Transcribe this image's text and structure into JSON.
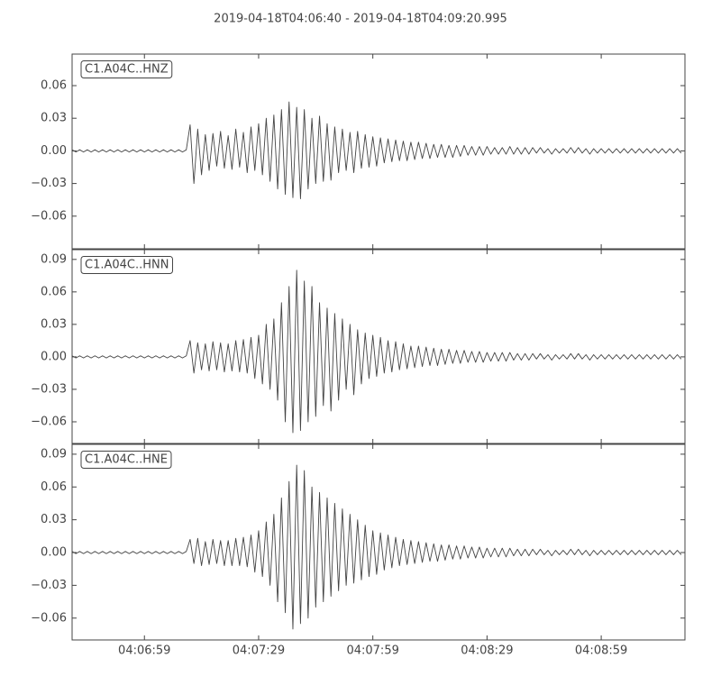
{
  "title": "2019-04-18T04:06:40  -  2019-04-18T04:09:20.995",
  "chart_data": [
    {
      "type": "line",
      "x": [
        0,
        1,
        2,
        3,
        4,
        5,
        6,
        7,
        8,
        9,
        10,
        11,
        12,
        13,
        14,
        15,
        16,
        17,
        18,
        19,
        20,
        21,
        22,
        23,
        24,
        25,
        26,
        27,
        28,
        29,
        30,
        31,
        32,
        33,
        34,
        35,
        36,
        37,
        38,
        39,
        40,
        41,
        42,
        43,
        44,
        45,
        46,
        47,
        48,
        49,
        50,
        51,
        52,
        53,
        54,
        55,
        56,
        57,
        58,
        59,
        60,
        61,
        62,
        63,
        64,
        65,
        66,
        67,
        68,
        69,
        70,
        71,
        72,
        73,
        74,
        75,
        76,
        77,
        78,
        79,
        80,
        81,
        82,
        83,
        84,
        85,
        86,
        87,
        88,
        89,
        90,
        91,
        92,
        93,
        94,
        95,
        96,
        97,
        98,
        99,
        100,
        101,
        102,
        103,
        104,
        105,
        106,
        107,
        108,
        109,
        110,
        111,
        112,
        113,
        114,
        115,
        116,
        117,
        118,
        119,
        120,
        121,
        122,
        123,
        124,
        125,
        126,
        127,
        128,
        129,
        130,
        131,
        132,
        133,
        134,
        135,
        136,
        137,
        138,
        139,
        140,
        141,
        142,
        143,
        144,
        145,
        146,
        147,
        148,
        149,
        150,
        151,
        152,
        153,
        154,
        155,
        156,
        157,
        158,
        159,
        160
      ],
      "series": [
        {
          "name": "C1.A04C..HNZ",
          "color": "#444444",
          "values": [
            0.001,
            -0.001,
            0.001,
            -0.001,
            0.001,
            -0.001,
            0.001,
            -0.001,
            0.001,
            -0.001,
            0.001,
            -0.001,
            0.001,
            -0.001,
            0.001,
            -0.001,
            0.001,
            -0.001,
            0.001,
            -0.001,
            0.001,
            -0.001,
            0.001,
            -0.001,
            0.001,
            -0.001,
            0.001,
            -0.001,
            0.001,
            -0.001,
            0.001,
            0.024,
            -0.03,
            0.02,
            -0.022,
            0.015,
            -0.018,
            0.016,
            -0.014,
            0.018,
            -0.016,
            0.014,
            -0.017,
            0.02,
            -0.015,
            0.017,
            -0.02,
            0.022,
            -0.018,
            0.025,
            -0.022,
            0.03,
            -0.028,
            0.033,
            -0.035,
            0.038,
            -0.04,
            0.045,
            -0.043,
            0.04,
            -0.044,
            0.038,
            -0.035,
            0.03,
            -0.03,
            0.032,
            -0.028,
            0.025,
            -0.027,
            0.022,
            -0.02,
            0.02,
            -0.018,
            0.017,
            -0.02,
            0.018,
            -0.016,
            0.015,
            -0.015,
            0.013,
            -0.014,
            0.012,
            -0.011,
            0.011,
            -0.01,
            0.01,
            -0.009,
            0.009,
            -0.009,
            0.008,
            -0.008,
            0.008,
            -0.007,
            0.007,
            -0.007,
            0.006,
            -0.006,
            0.006,
            -0.006,
            0.005,
            -0.006,
            0.005,
            -0.005,
            0.005,
            -0.004,
            0.004,
            -0.004,
            0.004,
            -0.004,
            0.004,
            -0.003,
            0.003,
            -0.003,
            0.003,
            -0.003,
            0.004,
            -0.003,
            0.003,
            -0.003,
            0.003,
            -0.003,
            0.003,
            -0.002,
            0.003,
            -0.002,
            0.002,
            -0.003,
            0.002,
            -0.002,
            0.002,
            -0.002,
            0.003,
            -0.002,
            0.003,
            -0.002,
            0.002,
            -0.003,
            0.002,
            -0.002,
            0.002,
            -0.002,
            0.002,
            -0.002,
            0.002,
            -0.002,
            0.002,
            -0.002,
            0.002,
            -0.002,
            0.002,
            -0.002,
            0.002,
            -0.002,
            0.002,
            -0.002,
            0.002,
            -0.002,
            0.002,
            -0.002,
            0.002,
            -0.002
          ]
        }
      ],
      "ylim": [
        -0.09,
        0.089
      ],
      "yticks": [
        {
          "value": -0.06,
          "label": "−0.06"
        },
        {
          "value": -0.03,
          "label": "−0.03"
        },
        {
          "value": 0,
          "label": "0.00"
        },
        0.03,
        0.06
      ]
    },
    {
      "type": "line",
      "x": [
        0,
        1,
        2,
        3,
        4,
        5,
        6,
        7,
        8,
        9,
        10,
        11,
        12,
        13,
        14,
        15,
        16,
        17,
        18,
        19,
        20,
        21,
        22,
        23,
        24,
        25,
        26,
        27,
        28,
        29,
        30,
        31,
        32,
        33,
        34,
        35,
        36,
        37,
        38,
        39,
        40,
        41,
        42,
        43,
        44,
        45,
        46,
        47,
        48,
        49,
        50,
        51,
        52,
        53,
        54,
        55,
        56,
        57,
        58,
        59,
        60,
        61,
        62,
        63,
        64,
        65,
        66,
        67,
        68,
        69,
        70,
        71,
        72,
        73,
        74,
        75,
        76,
        77,
        78,
        79,
        80,
        81,
        82,
        83,
        84,
        85,
        86,
        87,
        88,
        89,
        90,
        91,
        92,
        93,
        94,
        95,
        96,
        97,
        98,
        99,
        100,
        101,
        102,
        103,
        104,
        105,
        106,
        107,
        108,
        109,
        110,
        111,
        112,
        113,
        114,
        115,
        116,
        117,
        118,
        119,
        120,
        121,
        122,
        123,
        124,
        125,
        126,
        127,
        128,
        129,
        130,
        131,
        132,
        133,
        134,
        135,
        136,
        137,
        138,
        139,
        140,
        141,
        142,
        143,
        144,
        145,
        146,
        147,
        148,
        149,
        150,
        151,
        152,
        153,
        154,
        155,
        156,
        157,
        158,
        159,
        160
      ],
      "series": [
        {
          "name": "C1.A04C..HNN",
          "color": "#444444",
          "values": [
            0.001,
            -0.001,
            0.001,
            -0.001,
            0.001,
            -0.001,
            0.001,
            -0.001,
            0.001,
            -0.001,
            0.001,
            -0.001,
            0.001,
            -0.001,
            0.001,
            -0.001,
            0.001,
            -0.001,
            0.001,
            -0.001,
            0.001,
            -0.001,
            0.001,
            -0.001,
            0.001,
            -0.001,
            0.001,
            -0.001,
            0.001,
            -0.001,
            0.001,
            0.015,
            -0.015,
            0.013,
            -0.012,
            0.012,
            -0.013,
            0.014,
            -0.012,
            0.013,
            -0.014,
            0.012,
            -0.013,
            0.015,
            -0.014,
            0.016,
            -0.015,
            0.018,
            -0.02,
            0.02,
            -0.025,
            0.03,
            -0.03,
            0.035,
            -0.04,
            0.05,
            -0.06,
            0.065,
            -0.07,
            0.08,
            -0.068,
            0.07,
            -0.06,
            0.065,
            -0.055,
            0.05,
            -0.045,
            0.045,
            -0.05,
            0.04,
            -0.04,
            0.035,
            -0.03,
            0.03,
            -0.035,
            0.025,
            -0.025,
            0.022,
            -0.02,
            0.02,
            -0.018,
            0.018,
            -0.015,
            0.015,
            -0.014,
            0.014,
            -0.012,
            0.012,
            -0.011,
            0.01,
            -0.01,
            0.01,
            -0.009,
            0.009,
            -0.008,
            0.008,
            -0.008,
            0.007,
            -0.007,
            0.007,
            -0.006,
            0.006,
            -0.006,
            0.006,
            -0.005,
            0.005,
            -0.005,
            0.005,
            -0.005,
            0.004,
            -0.004,
            0.004,
            -0.004,
            0.004,
            -0.004,
            0.004,
            -0.003,
            0.003,
            -0.003,
            0.003,
            -0.003,
            0.003,
            -0.002,
            0.003,
            -0.002,
            0.002,
            -0.003,
            0.002,
            -0.002,
            0.002,
            -0.002,
            0.003,
            -0.002,
            0.003,
            -0.002,
            0.002,
            -0.003,
            0.002,
            -0.002,
            0.002,
            -0.002,
            0.002,
            -0.002,
            0.002,
            -0.002,
            0.002,
            -0.002,
            0.002,
            -0.002,
            0.002,
            -0.002,
            0.002,
            -0.002,
            0.002,
            -0.002,
            0.002,
            -0.002,
            0.002,
            -0.002,
            0.002,
            -0.002
          ]
        }
      ],
      "ylim": [
        -0.08,
        0.099
      ],
      "yticks": [
        {
          "value": -0.06,
          "label": "−0.06"
        },
        {
          "value": -0.03,
          "label": "−0.03"
        },
        {
          "value": 0,
          "label": "0.00"
        },
        0.03,
        0.06,
        0.09
      ]
    },
    {
      "type": "line",
      "x": [
        0,
        1,
        2,
        3,
        4,
        5,
        6,
        7,
        8,
        9,
        10,
        11,
        12,
        13,
        14,
        15,
        16,
        17,
        18,
        19,
        20,
        21,
        22,
        23,
        24,
        25,
        26,
        27,
        28,
        29,
        30,
        31,
        32,
        33,
        34,
        35,
        36,
        37,
        38,
        39,
        40,
        41,
        42,
        43,
        44,
        45,
        46,
        47,
        48,
        49,
        50,
        51,
        52,
        53,
        54,
        55,
        56,
        57,
        58,
        59,
        60,
        61,
        62,
        63,
        64,
        65,
        66,
        67,
        68,
        69,
        70,
        71,
        72,
        73,
        74,
        75,
        76,
        77,
        78,
        79,
        80,
        81,
        82,
        83,
        84,
        85,
        86,
        87,
        88,
        89,
        90,
        91,
        92,
        93,
        94,
        95,
        96,
        97,
        98,
        99,
        100,
        101,
        102,
        103,
        104,
        105,
        106,
        107,
        108,
        109,
        110,
        111,
        112,
        113,
        114,
        115,
        116,
        117,
        118,
        119,
        120,
        121,
        122,
        123,
        124,
        125,
        126,
        127,
        128,
        129,
        130,
        131,
        132,
        133,
        134,
        135,
        136,
        137,
        138,
        139,
        140,
        141,
        142,
        143,
        144,
        145,
        146,
        147,
        148,
        149,
        150,
        151,
        152,
        153,
        154,
        155,
        156,
        157,
        158,
        159,
        160
      ],
      "series": [
        {
          "name": "C1.A04C..HNE",
          "color": "#444444",
          "values": [
            0.001,
            -0.001,
            0.001,
            -0.001,
            0.001,
            -0.001,
            0.001,
            -0.001,
            0.001,
            -0.001,
            0.001,
            -0.001,
            0.001,
            -0.001,
            0.001,
            -0.001,
            0.001,
            -0.001,
            0.001,
            -0.001,
            0.001,
            -0.001,
            0.001,
            -0.001,
            0.001,
            -0.001,
            0.001,
            -0.001,
            0.001,
            -0.001,
            0.001,
            0.012,
            -0.01,
            0.013,
            -0.012,
            0.01,
            -0.011,
            0.012,
            -0.01,
            0.011,
            -0.012,
            0.011,
            -0.012,
            0.013,
            -0.012,
            0.014,
            -0.013,
            0.016,
            -0.018,
            0.02,
            -0.022,
            0.028,
            -0.03,
            0.035,
            -0.045,
            0.05,
            -0.055,
            0.065,
            -0.07,
            0.08,
            -0.065,
            0.075,
            -0.06,
            0.06,
            -0.05,
            0.055,
            -0.045,
            0.05,
            -0.04,
            0.045,
            -0.035,
            0.04,
            -0.03,
            0.035,
            -0.028,
            0.03,
            -0.025,
            0.025,
            -0.022,
            0.02,
            -0.02,
            0.018,
            -0.016,
            0.016,
            -0.014,
            0.014,
            -0.012,
            0.012,
            -0.011,
            0.011,
            -0.01,
            0.01,
            -0.009,
            0.009,
            -0.008,
            0.008,
            -0.008,
            0.007,
            -0.007,
            0.007,
            -0.006,
            0.006,
            -0.006,
            0.006,
            -0.005,
            0.005,
            -0.005,
            0.005,
            -0.005,
            0.004,
            -0.004,
            0.004,
            -0.004,
            0.004,
            -0.004,
            0.004,
            -0.003,
            0.003,
            -0.003,
            0.003,
            -0.003,
            0.003,
            -0.002,
            0.003,
            -0.002,
            0.002,
            -0.003,
            0.002,
            -0.002,
            0.002,
            -0.002,
            0.003,
            -0.002,
            0.003,
            -0.002,
            0.002,
            -0.003,
            0.002,
            -0.002,
            0.002,
            -0.002,
            0.002,
            -0.002,
            0.002,
            -0.002,
            0.002,
            -0.002,
            0.002,
            -0.002,
            0.002,
            -0.002,
            0.002,
            -0.002,
            0.002,
            -0.002,
            0.002,
            -0.002,
            0.002,
            -0.002,
            0.002,
            -0.002
          ]
        }
      ],
      "ylim": [
        -0.08,
        0.099
      ],
      "yticks": [
        {
          "value": -0.06,
          "label": "−0.06"
        },
        {
          "value": -0.03,
          "label": "−0.03"
        },
        {
          "value": 0,
          "label": "0.00"
        },
        0.03,
        0.06,
        0.09
      ],
      "xlim": [
        0,
        160.995
      ],
      "xticks": [
        {
          "value": 19,
          "label": "04:06:59"
        },
        {
          "value": 49,
          "label": "04:07:29"
        },
        {
          "value": 79,
          "label": "04:07:59"
        },
        {
          "value": 109,
          "label": "04:08:29"
        },
        {
          "value": 139,
          "label": "04:08:59"
        }
      ]
    }
  ]
}
